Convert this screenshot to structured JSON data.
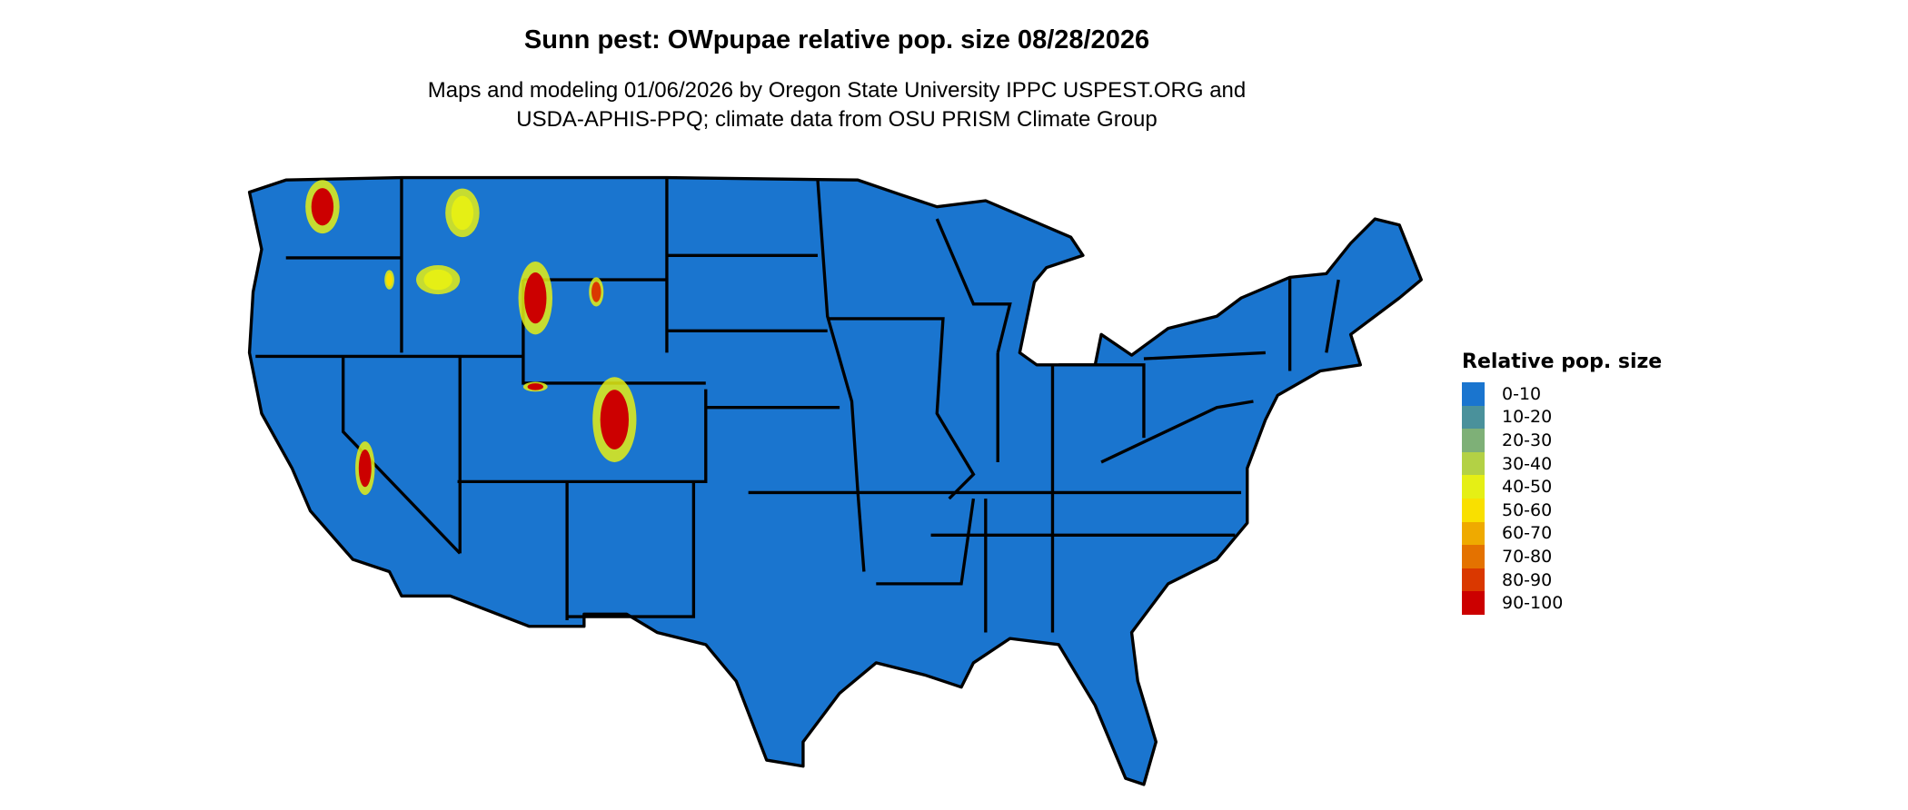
{
  "title": "Sunn pest: OWpupae relative pop. size 08/28/2026",
  "subtitle_line1": "Maps and modeling 01/06/2026 by Oregon State University IPPC USPEST.ORG and",
  "subtitle_line2": "USDA-APHIS-PPQ; climate data from OSU PRISM Climate Group",
  "map": {
    "region": "Contiguous United States",
    "base_color": "#1a75cf",
    "border_color": "#000000"
  },
  "legend": {
    "title": "Relative pop. size",
    "items": [
      {
        "label": "0-10",
        "color": "#1a75cf"
      },
      {
        "label": "10-20",
        "color": "#4a919b"
      },
      {
        "label": "20-30",
        "color": "#7eb077"
      },
      {
        "label": "30-40",
        "color": "#b3d145"
      },
      {
        "label": "40-50",
        "color": "#e5ef15"
      },
      {
        "label": "50-60",
        "color": "#f9e000"
      },
      {
        "label": "60-70",
        "color": "#efaa00"
      },
      {
        "label": "70-80",
        "color": "#e47200"
      },
      {
        "label": "80-90",
        "color": "#da3800"
      },
      {
        "label": "90-100",
        "color": "#cc0000"
      }
    ]
  }
}
